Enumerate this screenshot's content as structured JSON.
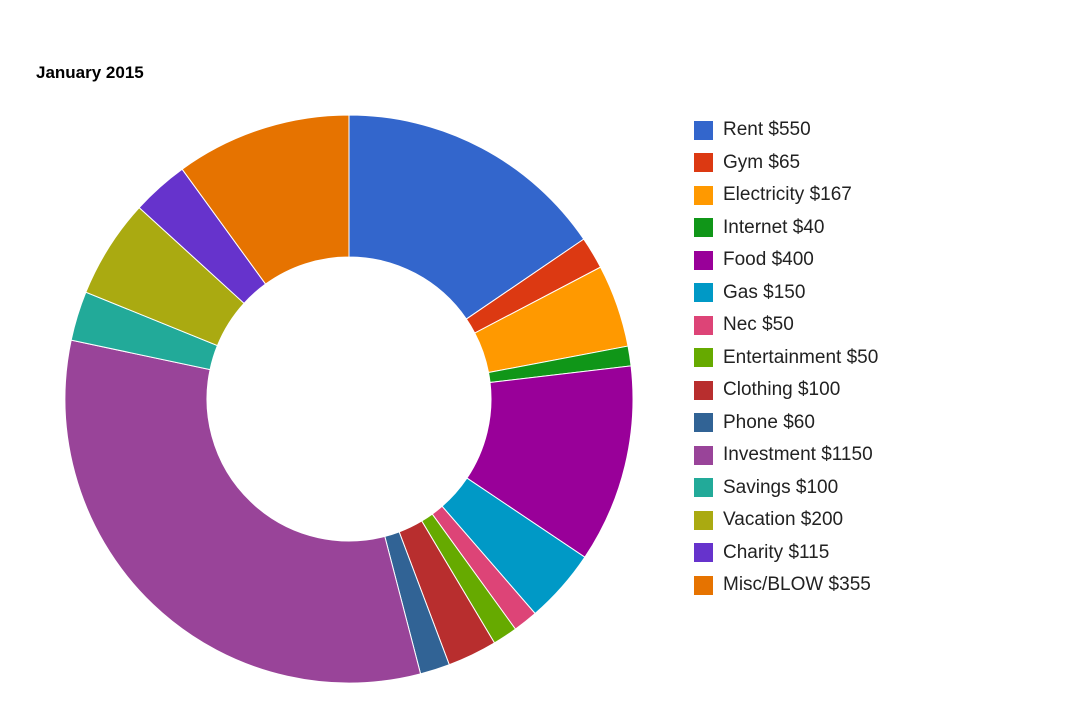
{
  "chart_data": {
    "type": "pie",
    "title": "January 2015",
    "legend_position": "right",
    "slices": [
      {
        "label": "Rent $550",
        "category": "Rent",
        "value": 550,
        "color": "#3366cc"
      },
      {
        "label": "Gym $65",
        "category": "Gym",
        "value": 65,
        "color": "#dc3912"
      },
      {
        "label": "Electricity $167",
        "category": "Electricity",
        "value": 167,
        "color": "#ff9900"
      },
      {
        "label": "Internet $40",
        "category": "Internet",
        "value": 40,
        "color": "#109618"
      },
      {
        "label": "Food $400",
        "category": "Food",
        "value": 400,
        "color": "#990099"
      },
      {
        "label": "Gas $150",
        "category": "Gas",
        "value": 150,
        "color": "#0099c6"
      },
      {
        "label": "Nec $50",
        "category": "Nec",
        "value": 50,
        "color": "#dd4477"
      },
      {
        "label": "Entertainment $50",
        "category": "Entertainment",
        "value": 50,
        "color": "#66aa00"
      },
      {
        "label": "Clothing $100",
        "category": "Clothing",
        "value": 100,
        "color": "#b82e2e"
      },
      {
        "label": "Phone $60",
        "category": "Phone",
        "value": 60,
        "color": "#316395"
      },
      {
        "label": "Investment $1150",
        "category": "Investment",
        "value": 1150,
        "color": "#994499"
      },
      {
        "label": "Savings $100",
        "category": "Savings",
        "value": 100,
        "color": "#22aa99"
      },
      {
        "label": "Vacation $200",
        "category": "Vacation",
        "value": 200,
        "color": "#aaaa11"
      },
      {
        "label": "Charity $115",
        "category": "Charity",
        "value": 115,
        "color": "#6633cc"
      },
      {
        "label": "Misc/BLOW $355",
        "category": "Misc/BLOW",
        "value": 355,
        "color": "#e67300"
      }
    ]
  }
}
